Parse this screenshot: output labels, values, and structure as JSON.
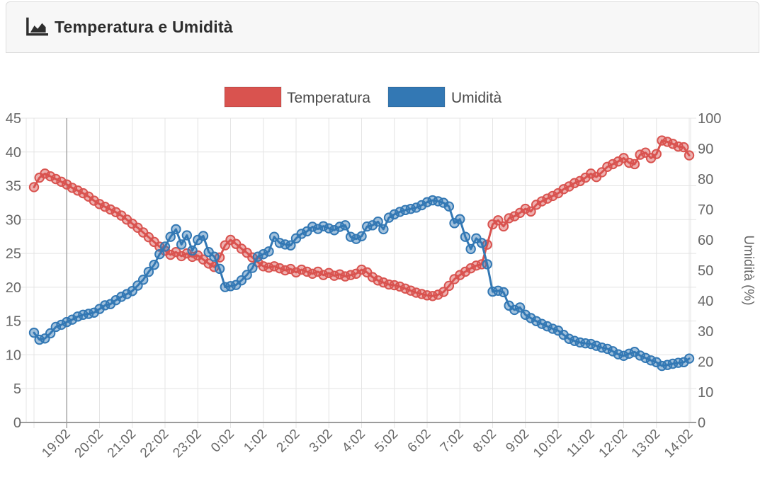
{
  "header": {
    "title": "Temperatura e Umidità",
    "icon": "area-chart-icon"
  },
  "legend": {
    "items": [
      {
        "label": "Temperatura",
        "color": "#d9534f"
      },
      {
        "label": "Umidità",
        "color": "#3378b4"
      }
    ]
  },
  "chart_data": {
    "type": "line",
    "title": "Temperatura e Umidità",
    "legend_position": "top",
    "grid": true,
    "right_axis_title": "Umidità (%)",
    "left_axis": {
      "min": 0,
      "max": 45,
      "step": 5,
      "tick_labels": [
        "45",
        "40",
        "35",
        "30",
        "25",
        "20",
        "15",
        "10",
        "5",
        "0"
      ]
    },
    "right_axis": {
      "min": 0,
      "max": 100,
      "step": 10,
      "tick_labels": [
        "100",
        "90",
        "80",
        "70",
        "60",
        "50",
        "40",
        "30",
        "20",
        "10",
        "0"
      ]
    },
    "x_tick_every": 6,
    "x_first_labeled_tick_index": 6,
    "x_shown_tick_labels": [
      "19:02",
      "20:02",
      "21:02",
      "22:02",
      "23:02",
      "0:02",
      "1:02",
      "2:02",
      "3:02",
      "4:02",
      "5:02",
      "6:02",
      "7:02",
      "8:02",
      "9:02",
      "10:02",
      "11:02",
      "12:02",
      "13:02",
      "14:02"
    ],
    "x_labels": [
      "18:02",
      "18:12",
      "18:22",
      "18:32",
      "18:42",
      "18:52",
      "19:02",
      "19:12",
      "19:22",
      "19:32",
      "19:42",
      "19:52",
      "20:02",
      "20:12",
      "20:22",
      "20:32",
      "20:42",
      "20:52",
      "21:02",
      "21:12",
      "21:22",
      "21:32",
      "21:42",
      "21:52",
      "22:02",
      "22:12",
      "22:22",
      "22:32",
      "22:42",
      "22:52",
      "23:02",
      "23:12",
      "23:22",
      "23:32",
      "23:42",
      "23:52",
      "0:02",
      "0:12",
      "0:22",
      "0:32",
      "0:42",
      "0:52",
      "1:02",
      "1:12",
      "1:22",
      "1:32",
      "1:42",
      "1:52",
      "2:02",
      "2:12",
      "2:22",
      "2:32",
      "2:42",
      "2:52",
      "3:02",
      "3:12",
      "3:22",
      "3:32",
      "3:42",
      "3:52",
      "4:02",
      "4:12",
      "4:22",
      "4:32",
      "4:42",
      "4:52",
      "5:02",
      "5:12",
      "5:22",
      "5:32",
      "5:42",
      "5:52",
      "6:02",
      "6:12",
      "6:22",
      "6:32",
      "6:42",
      "6:52",
      "7:02",
      "7:12",
      "7:22",
      "7:32",
      "7:42",
      "7:52",
      "8:02",
      "8:12",
      "8:22",
      "8:32",
      "8:42",
      "8:52",
      "9:02",
      "9:12",
      "9:22",
      "9:32",
      "9:42",
      "9:52",
      "10:02",
      "10:12",
      "10:22",
      "10:32",
      "10:42",
      "10:52",
      "11:02",
      "11:12",
      "11:22",
      "11:32",
      "11:42",
      "11:52",
      "12:02",
      "12:12",
      "12:22",
      "12:32",
      "12:42",
      "12:52",
      "13:02",
      "13:12",
      "13:22",
      "13:32",
      "13:42",
      "13:52",
      "14:02"
    ],
    "series": [
      {
        "name": "Temperatura",
        "axis": "left",
        "color": "#d9534f",
        "fill_color": "rgba(217,83,79,0.45)",
        "values": [
          34.8,
          36.2,
          36.8,
          36.4,
          36.0,
          35.6,
          35.2,
          34.7,
          34.3,
          33.9,
          33.4,
          32.8,
          32.3,
          31.9,
          31.5,
          31.1,
          30.6,
          30.0,
          29.4,
          28.8,
          28.1,
          27.4,
          26.7,
          26.0,
          25.4,
          24.8,
          25.2,
          24.6,
          25.0,
          24.5,
          24.7,
          24.1,
          23.5,
          23.0,
          24.4,
          26.2,
          27.0,
          26.4,
          25.7,
          25.1,
          24.4,
          23.7,
          23.1,
          22.9,
          23.1,
          22.8,
          22.5,
          22.7,
          22.2,
          22.6,
          22.3,
          22.0,
          22.3,
          21.8,
          22.1,
          21.7,
          21.9,
          21.6,
          21.8,
          22.0,
          22.6,
          22.2,
          21.5,
          21.0,
          20.7,
          20.4,
          20.3,
          20.1,
          19.8,
          19.5,
          19.2,
          19.0,
          18.8,
          18.7,
          18.9,
          19.3,
          20.2,
          21.2,
          21.8,
          22.3,
          22.8,
          23.2,
          23.4,
          26.3,
          29.3,
          29.9,
          29.0,
          30.2,
          30.5,
          31.0,
          31.6,
          31.2,
          32.2,
          32.7,
          33.1,
          33.5,
          33.9,
          34.5,
          34.9,
          35.4,
          35.7,
          36.2,
          36.8,
          36.3,
          37.0,
          37.8,
          38.2,
          38.6,
          39.1,
          38.4,
          38.2,
          39.6,
          39.9,
          39.1,
          39.7,
          41.7,
          41.5,
          41.2,
          40.8,
          40.7,
          39.5
        ]
      },
      {
        "name": "Umidità",
        "axis": "right",
        "color": "#3378b4",
        "fill_color": "rgba(51,120,180,0.45)",
        "values": [
          29.5,
          27.2,
          27.6,
          29.3,
          31.4,
          32.1,
          33.0,
          33.8,
          34.8,
          35.4,
          35.7,
          36.1,
          37.3,
          38.5,
          38.9,
          40.2,
          41.3,
          42.2,
          43.2,
          45.0,
          46.9,
          49.5,
          51.8,
          55.3,
          57.8,
          61.0,
          63.5,
          58.5,
          61.5,
          56.5,
          60.0,
          61.3,
          56.0,
          54.5,
          50.5,
          44.5,
          44.8,
          45.2,
          46.7,
          48.5,
          50.8,
          54.5,
          55.3,
          56.2,
          61.0,
          59.0,
          58.5,
          58.2,
          60.5,
          62.0,
          62.8,
          64.3,
          63.6,
          64.5,
          63.8,
          63.2,
          64.3,
          64.8,
          61.0,
          60.3,
          61.2,
          64.4,
          64.8,
          66.0,
          63.5,
          67.3,
          68.4,
          69.2,
          69.8,
          70.2,
          70.6,
          71.4,
          72.4,
          73.0,
          72.7,
          72.2,
          71.0,
          65.5,
          66.8,
          61.0,
          57.0,
          60.5,
          59.0,
          52.0,
          43.0,
          43.3,
          42.8,
          38.4,
          37.0,
          37.8,
          35.4,
          34.3,
          33.3,
          32.4,
          31.6,
          30.8,
          30.2,
          28.8,
          27.5,
          26.8,
          26.3,
          26.0,
          25.8,
          25.2,
          24.6,
          24.2,
          23.4,
          22.4,
          21.9,
          22.6,
          23.2,
          22.0,
          21.2,
          20.4,
          19.8,
          18.6,
          18.9,
          19.3,
          19.6,
          19.8,
          21.0
        ]
      }
    ],
    "colors": {
      "grid": "#e4e4e4",
      "grid_dark_vertical": "#a6a6a6",
      "axis_line": "#9c9c9c",
      "tick_text": "#686868",
      "legend_text": "#4a4a4a"
    }
  }
}
